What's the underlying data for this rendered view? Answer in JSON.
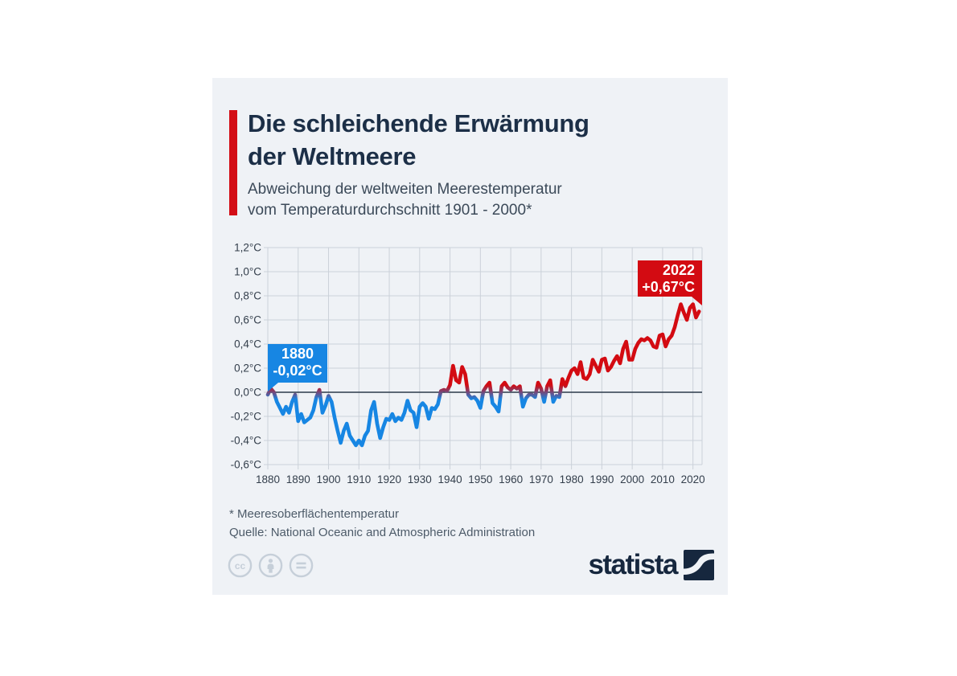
{
  "card": {
    "background": "#eff2f6",
    "accent_bar_color": "#d30f17",
    "title_line1": "Die schleichende Erwärmung",
    "title_line2": "der Weltmeere",
    "subtitle_line1": "Abweichung der weltweiten Meerestemperatur",
    "subtitle_line2": "vom Temperaturdurchschnitt 1901 - 2000*",
    "footnote": "* Meeresoberflächentemperatur",
    "source": "Quelle: National Oceanic and Atmospheric Administration",
    "brand_name": "statista",
    "license_icons": [
      "cc-icon",
      "attribution-icon",
      "no-derivatives-icon"
    ]
  },
  "colors": {
    "title_navy": "#1c2f47",
    "subtitle_gray": "#3c4a59",
    "grid": "#cbd1d9",
    "zero_line": "#2c3a4a",
    "axis_text": "#333e4b",
    "license_icon_gray": "#c6cfd9",
    "brand_navy": "#16273e"
  },
  "annotations": {
    "start": {
      "year": "1880",
      "value": "-0,02°C",
      "color": "#1786e3"
    },
    "end": {
      "year": "2022",
      "value": "+0,67°C",
      "color": "#d30b12"
    }
  },
  "chart_data": {
    "type": "line",
    "title": "Abweichung der weltweiten Meerestemperatur vom Temperaturdurchschnitt 1901-2000 (°C)",
    "xlabel": "",
    "ylabel": "°C",
    "grid": true,
    "x_start_year": 1880,
    "x_end_year": 2022,
    "x_axis_edge": 2023,
    "ylim": [
      -0.6,
      1.2
    ],
    "baseline": 0,
    "line_color_above": "#d30b12",
    "line_color_below": "#1786e3",
    "xticks": [
      1880,
      1890,
      1900,
      1910,
      1920,
      1930,
      1940,
      1950,
      1960,
      1970,
      1980,
      1990,
      2000,
      2010,
      2020
    ],
    "ytick_values": [
      1.2,
      1.0,
      0.8,
      0.6,
      0.4,
      0.2,
      0.0,
      -0.2,
      -0.4,
      -0.6
    ],
    "ytick_labels": [
      "1,2°C",
      "1,0°C",
      "0,8°C",
      "0,6°C",
      "0,4°C",
      "0,2°C",
      "0,0°C",
      "-0,2°C",
      "-0,4°C",
      "-0,6°C"
    ],
    "values": [
      -0.02,
      0.03,
      0.0,
      -0.08,
      -0.13,
      -0.18,
      -0.12,
      -0.17,
      -0.08,
      -0.02,
      -0.24,
      -0.18,
      -0.25,
      -0.23,
      -0.21,
      -0.15,
      -0.04,
      0.02,
      -0.17,
      -0.11,
      -0.03,
      -0.08,
      -0.21,
      -0.32,
      -0.42,
      -0.32,
      -0.26,
      -0.36,
      -0.4,
      -0.44,
      -0.4,
      -0.44,
      -0.36,
      -0.32,
      -0.15,
      -0.08,
      -0.26,
      -0.38,
      -0.29,
      -0.22,
      -0.23,
      -0.18,
      -0.24,
      -0.21,
      -0.23,
      -0.17,
      -0.07,
      -0.15,
      -0.17,
      -0.29,
      -0.12,
      -0.09,
      -0.12,
      -0.22,
      -0.13,
      -0.14,
      -0.1,
      0.01,
      0.02,
      0.01,
      0.06,
      0.22,
      0.1,
      0.08,
      0.21,
      0.15,
      -0.02,
      -0.05,
      -0.04,
      -0.07,
      -0.13,
      0.01,
      0.05,
      0.08,
      -0.09,
      -0.12,
      -0.16,
      0.05,
      0.08,
      0.04,
      0.02,
      0.05,
      0.03,
      0.05,
      -0.12,
      -0.05,
      -0.02,
      -0.02,
      -0.04,
      0.08,
      0.03,
      -0.08,
      0.05,
      0.1,
      -0.08,
      -0.03,
      -0.04,
      0.11,
      0.05,
      0.12,
      0.18,
      0.2,
      0.15,
      0.25,
      0.12,
      0.11,
      0.15,
      0.27,
      0.22,
      0.17,
      0.27,
      0.28,
      0.18,
      0.21,
      0.26,
      0.3,
      0.24,
      0.36,
      0.42,
      0.27,
      0.27,
      0.36,
      0.41,
      0.44,
      0.43,
      0.45,
      0.43,
      0.38,
      0.37,
      0.47,
      0.48,
      0.38,
      0.44,
      0.47,
      0.54,
      0.64,
      0.73,
      0.66,
      0.6,
      0.7,
      0.73,
      0.62,
      0.67
    ]
  }
}
